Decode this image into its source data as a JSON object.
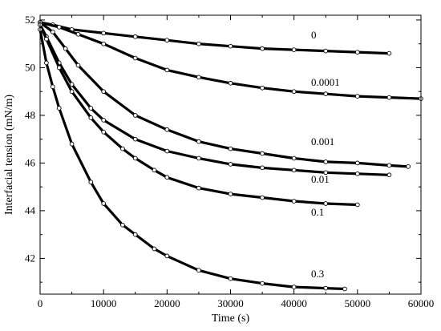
{
  "chart_data": {
    "type": "scatter",
    "title": "",
    "xlabel": "Time (s)",
    "ylabel": "Interfacial tension (mN/m)",
    "xlim": [
      0,
      60000
    ],
    "ylim": [
      40.5,
      52.2
    ],
    "xticks": [
      0,
      10000,
      20000,
      30000,
      40000,
      50000,
      60000
    ],
    "yticks": [
      42,
      44,
      46,
      48,
      50,
      52
    ],
    "grid": false,
    "legend": "none",
    "series": [
      {
        "name": "0",
        "x": [
          0,
          2000,
          5000,
          10000,
          15000,
          20000,
          25000,
          30000,
          35000,
          40000,
          45000,
          50000,
          55000
        ],
        "y": [
          51.9,
          51.8,
          51.6,
          51.45,
          51.3,
          51.15,
          51.0,
          50.9,
          50.8,
          50.75,
          50.7,
          50.65,
          50.6
        ]
      },
      {
        "name": "0.0001",
        "x": [
          0,
          3000,
          6000,
          10000,
          15000,
          20000,
          25000,
          30000,
          35000,
          40000,
          45000,
          50000,
          55000,
          60000
        ],
        "y": [
          51.9,
          51.7,
          51.4,
          51.0,
          50.4,
          49.9,
          49.6,
          49.35,
          49.15,
          49.0,
          48.9,
          48.8,
          48.75,
          48.7
        ]
      },
      {
        "name": "0.001",
        "x": [
          0,
          2000,
          4000,
          6000,
          10000,
          15000,
          20000,
          25000,
          30000,
          35000,
          40000,
          45000,
          50000,
          55000,
          58000
        ],
        "y": [
          51.9,
          51.5,
          50.8,
          50.1,
          49.0,
          48.0,
          47.4,
          46.9,
          46.6,
          46.4,
          46.2,
          46.05,
          46.0,
          45.9,
          45.85
        ]
      },
      {
        "name": "0.01",
        "x": [
          0,
          1000,
          3000,
          5000,
          8000,
          10000,
          15000,
          20000,
          25000,
          30000,
          35000,
          40000,
          45000,
          50000,
          55000
        ],
        "y": [
          51.8,
          51.3,
          50.2,
          49.3,
          48.3,
          47.8,
          47.0,
          46.5,
          46.2,
          45.95,
          45.8,
          45.7,
          45.6,
          45.55,
          45.5
        ]
      },
      {
        "name": "0.1",
        "x": [
          0,
          1000,
          3000,
          5000,
          8000,
          10000,
          13000,
          15000,
          18000,
          20000,
          25000,
          30000,
          35000,
          40000,
          45000,
          50000
        ],
        "y": [
          51.8,
          51.2,
          50.0,
          49.0,
          47.9,
          47.3,
          46.6,
          46.2,
          45.7,
          45.4,
          44.95,
          44.7,
          44.55,
          44.4,
          44.3,
          44.25
        ]
      },
      {
        "name": "0.3",
        "x": [
          0,
          1000,
          2000,
          3000,
          5000,
          8000,
          10000,
          13000,
          15000,
          18000,
          20000,
          25000,
          30000,
          35000,
          40000,
          45000,
          48000
        ],
        "y": [
          51.6,
          50.2,
          49.2,
          48.3,
          46.8,
          45.2,
          44.3,
          43.4,
          43.0,
          42.4,
          42.1,
          41.5,
          41.15,
          40.95,
          40.8,
          40.75,
          40.72
        ]
      }
    ],
    "annotations": [
      "0",
      "0.0001",
      "0.001",
      "0.01",
      "0.1",
      "0.3"
    ]
  }
}
